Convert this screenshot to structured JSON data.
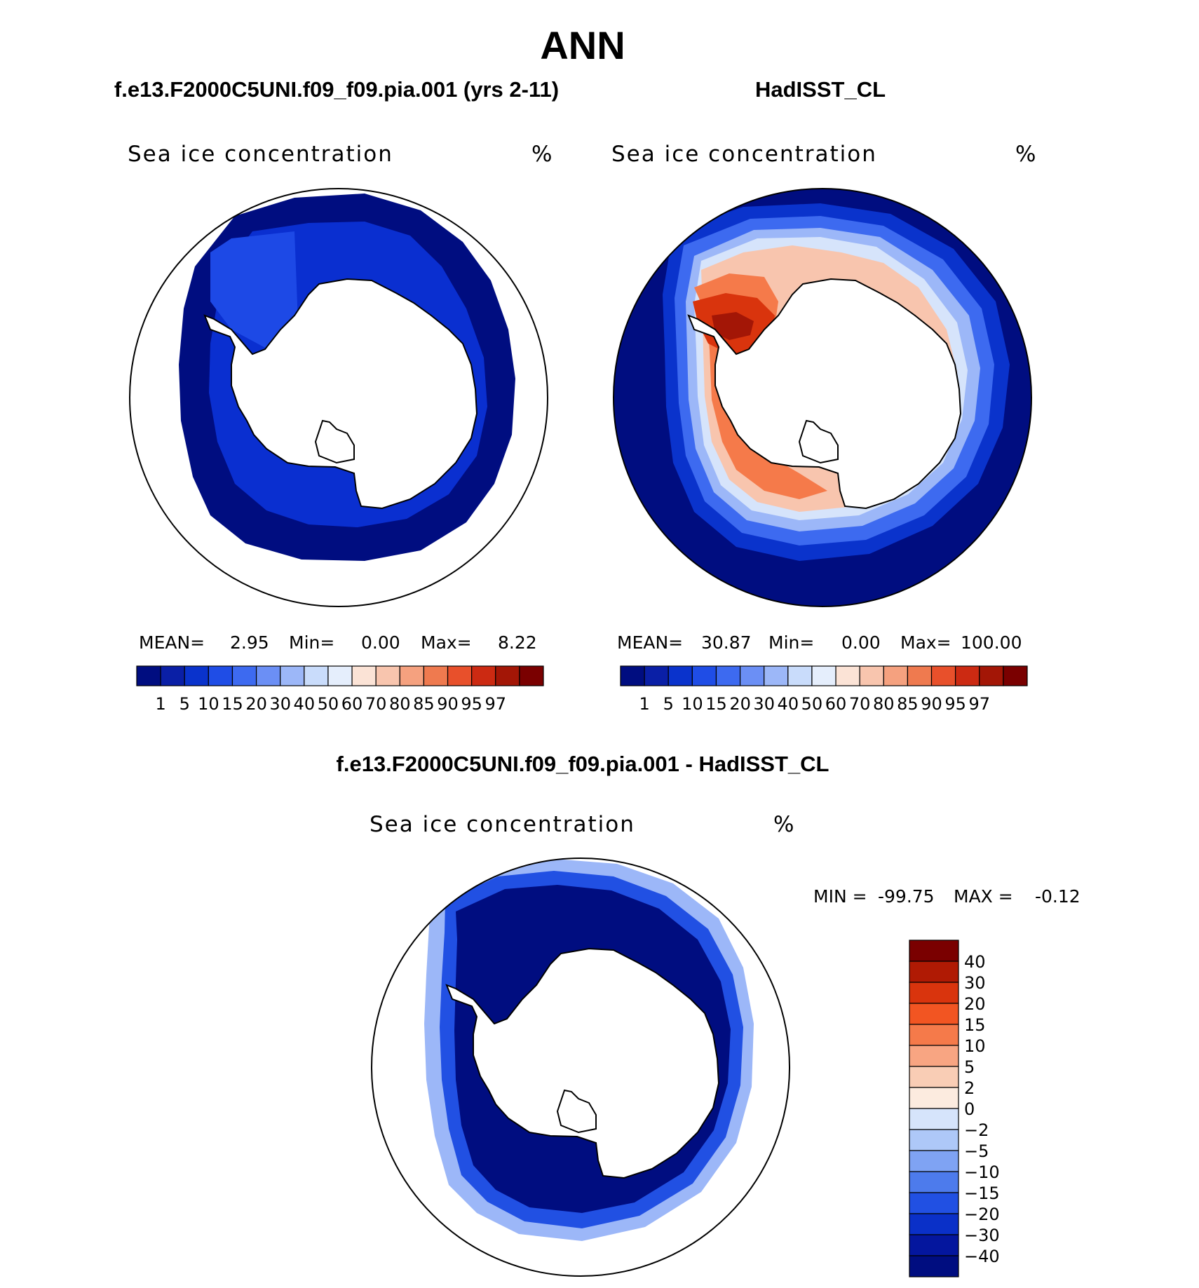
{
  "page": {
    "main_title": "ANN",
    "panel_titles": {
      "model": "f.e13.F2000C5UNI.f09_f09.pia.001 (yrs 2-11)",
      "obs": "HadISST_CL",
      "diff": "f.e13.F2000C5UNI.f09_f09.pia.001 - HadISST_CL"
    }
  },
  "chart_data": [
    {
      "type": "heatmap",
      "id": "model",
      "title": "f.e13.F2000C5UNI.f09_f09.pia.001 (yrs 2-11)",
      "variable": "Sea ice concentration",
      "units": "%",
      "projection": "south polar stereographic",
      "stats": {
        "mean_label": "MEAN=",
        "mean": "2.95",
        "min_label": "Min=",
        "min": "0.00",
        "max_label": "Max=",
        "max": "8.22"
      },
      "colorbar": {
        "orientation": "horizontal",
        "levels": [
          "1",
          "5",
          "10",
          "15",
          "20",
          "30",
          "40",
          "50",
          "60",
          "70",
          "80",
          "85",
          "90",
          "95",
          "97"
        ],
        "colors": [
          "#000d80",
          "#0a1fa6",
          "#0a33cc",
          "#1f4de6",
          "#3d6af0",
          "#6b8ff5",
          "#9cb7f8",
          "#c9dcfb",
          "#e5eefc",
          "#fbe3d6",
          "#f8c5ae",
          "#f5a17f",
          "#ef7a4f",
          "#e8502b",
          "#cc2a12",
          "#a31606",
          "#7a0000"
        ]
      },
      "field_fill_ring_color": "#000d80",
      "field_fill_core_color": "#0a2fd0"
    },
    {
      "type": "heatmap",
      "id": "obs",
      "title": "HadISST_CL",
      "variable": "Sea ice concentration",
      "units": "%",
      "projection": "south polar stereographic",
      "stats": {
        "mean_label": "MEAN=",
        "mean": "30.87",
        "min_label": "Min=",
        "min": "0.00",
        "max_label": "Max=",
        "max": "100.00"
      },
      "colorbar": {
        "orientation": "horizontal",
        "levels": [
          "1",
          "5",
          "10",
          "15",
          "20",
          "30",
          "40",
          "50",
          "60",
          "70",
          "80",
          "85",
          "90",
          "95",
          "97"
        ],
        "colors": [
          "#000d80",
          "#0a1fa6",
          "#0a33cc",
          "#1f4de6",
          "#3d6af0",
          "#6b8ff5",
          "#9cb7f8",
          "#c9dcfb",
          "#e5eefc",
          "#fbe3d6",
          "#f8c5ae",
          "#f5a17f",
          "#ef7a4f",
          "#e8502b",
          "#cc2a12",
          "#a31606",
          "#7a0000"
        ]
      }
    },
    {
      "type": "heatmap",
      "id": "diff",
      "title": "f.e13.F2000C5UNI.f09_f09.pia.001 - HadISST_CL",
      "variable": "Sea ice concentration",
      "units": "%",
      "projection": "south polar stereographic",
      "stats": {
        "min_label": "MIN =",
        "min": "-99.75",
        "max_label": "MAX =",
        "max": "-0.12"
      },
      "colorbar": {
        "orientation": "vertical",
        "levels": [
          "40",
          "30",
          "20",
          "15",
          "10",
          "5",
          "2",
          "0",
          "-2",
          "-5",
          "-10",
          "-15",
          "-20",
          "-30",
          "-40"
        ],
        "colors": [
          "#7a0000",
          "#b01a04",
          "#d9340d",
          "#f25522",
          "#f57a4a",
          "#f8a582",
          "#f9cdb5",
          "#fcebdf",
          "#d6e4fb",
          "#aec8f8",
          "#7fa3f3",
          "#4d7bec",
          "#2150e3",
          "#0a30c8",
          "#04169e",
          "#000d80"
        ]
      }
    }
  ]
}
